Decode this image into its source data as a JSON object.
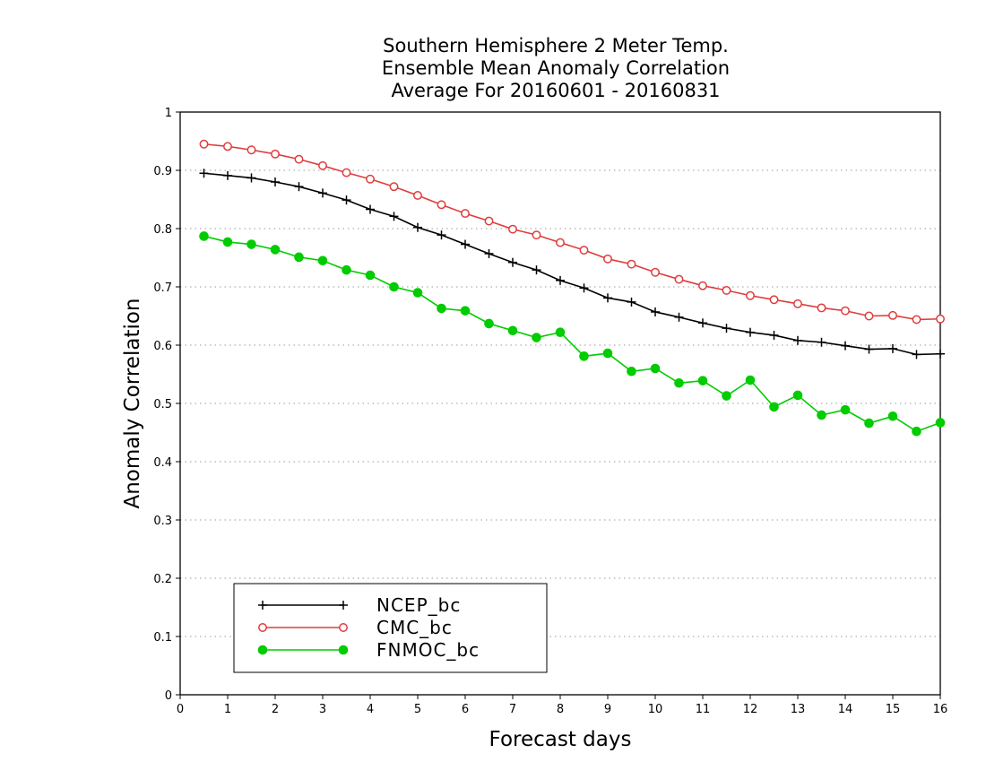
{
  "chart_data": {
    "type": "line",
    "title": [
      "Southern Hemisphere 2 Meter Temp.",
      "Ensemble Mean Anomaly Correlation",
      "Average For 20160601 - 20160831"
    ],
    "xlabel": "Forecast days",
    "ylabel": "Anomaly Correlation",
    "xlim": [
      0,
      16
    ],
    "ylim": [
      0,
      1
    ],
    "xticks": [
      "0",
      "1",
      "2",
      "3",
      "4",
      "5",
      "6",
      "7",
      "8",
      "9",
      "10",
      "11",
      "12",
      "13",
      "14",
      "15",
      "16"
    ],
    "yticks": [
      "0",
      "0.1",
      "0.2",
      "0.3",
      "0.4",
      "0.5",
      "0.6",
      "0.7",
      "0.8",
      "0.9",
      "1"
    ],
    "grid": true,
    "legend_position": "bottom-left",
    "x": [
      0.5,
      1,
      1.5,
      2,
      2.5,
      3,
      3.5,
      4,
      4.5,
      5,
      5.5,
      6,
      6.5,
      7,
      7.5,
      8,
      8.5,
      9,
      9.5,
      10,
      10.5,
      11,
      11.5,
      12,
      12.5,
      13,
      13.5,
      14,
      14.5,
      15,
      15.5,
      16
    ],
    "series": [
      {
        "name": "NCEP_bc",
        "color": "#000000",
        "marker": "plus",
        "values": [
          0.895,
          0.891,
          0.887,
          0.88,
          0.872,
          0.861,
          0.849,
          0.833,
          0.821,
          0.802,
          0.789,
          0.773,
          0.757,
          0.742,
          0.729,
          0.711,
          0.698,
          0.681,
          0.674,
          0.657,
          0.648,
          0.638,
          0.629,
          0.622,
          0.617,
          0.608,
          0.605,
          0.599,
          0.593,
          0.594,
          0.584,
          0.585
        ]
      },
      {
        "name": "CMC_bc",
        "color": "#e03c3c",
        "marker": "open-circle",
        "values": [
          0.945,
          0.941,
          0.935,
          0.928,
          0.919,
          0.908,
          0.896,
          0.885,
          0.872,
          0.857,
          0.841,
          0.826,
          0.813,
          0.799,
          0.789,
          0.776,
          0.763,
          0.748,
          0.739,
          0.725,
          0.713,
          0.702,
          0.694,
          0.685,
          0.678,
          0.671,
          0.664,
          0.659,
          0.65,
          0.651,
          0.644,
          0.645
        ]
      },
      {
        "name": "FNMOC_bc",
        "color": "#00cc00",
        "marker": "filled-circle",
        "values": [
          0.787,
          0.777,
          0.773,
          0.764,
          0.751,
          0.745,
          0.729,
          0.72,
          0.7,
          0.69,
          0.663,
          0.659,
          0.637,
          0.625,
          0.613,
          0.622,
          0.581,
          0.586,
          0.555,
          0.56,
          0.535,
          0.539,
          0.513,
          0.54,
          0.494,
          0.514,
          0.48,
          0.489,
          0.466,
          0.478,
          0.452,
          0.467
        ]
      }
    ]
  }
}
